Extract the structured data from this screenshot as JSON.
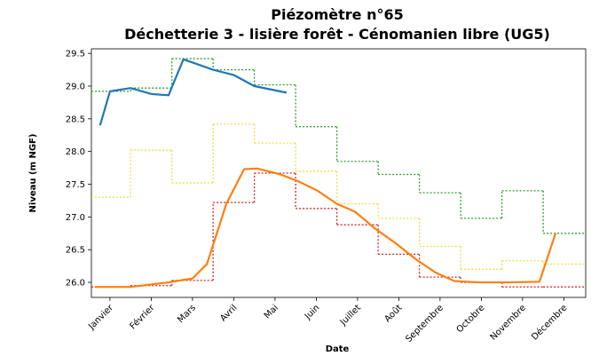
{
  "chart_data": {
    "type": "line",
    "title": "Piézomètre n°65",
    "subtitle": "Déchetterie 3 - lisière forêt - Cénomanien libre (UG5)",
    "xlabel": "Date",
    "ylabel": "Niveau (m NGF)",
    "xlim": [
      0.55,
      12.53
    ],
    "ylim": [
      25.77,
      29.57
    ],
    "xticks": [
      {
        "value": 1,
        "label": "Janvier"
      },
      {
        "value": 2,
        "label": "Février"
      },
      {
        "value": 3,
        "label": "Mars"
      },
      {
        "value": 4,
        "label": "Avril"
      },
      {
        "value": 5,
        "label": "Mai"
      },
      {
        "value": 6,
        "label": "Juin"
      },
      {
        "value": 7,
        "label": "Juillet"
      },
      {
        "value": 8,
        "label": "Août"
      },
      {
        "value": 9,
        "label": "Septembre"
      },
      {
        "value": 10,
        "label": "Octobre"
      },
      {
        "value": 11,
        "label": "Novembre"
      },
      {
        "value": 12,
        "label": "Décembre"
      }
    ],
    "yticks": [
      {
        "value": 26,
        "label": "26.0"
      },
      26.5,
      {
        "value": 27,
        "label": "27.0"
      },
      27.5,
      {
        "value": 28,
        "label": "28.0"
      },
      28.5,
      {
        "value": 29,
        "label": "29.0"
      },
      29.5
    ],
    "grid": false,
    "series": [
      {
        "color": "#2ca02c",
        "style": "step",
        "dash": true,
        "x": [
          1,
          2,
          3,
          4,
          5,
          6,
          7,
          8,
          9,
          10,
          11,
          12
        ],
        "values": [
          28.92,
          28.97,
          29.42,
          29.25,
          29.02,
          28.38,
          27.85,
          27.65,
          27.37,
          26.98,
          27.4,
          26.75
        ]
      },
      {
        "color": "#e8e04a",
        "style": "step",
        "dash": true,
        "x": [
          1,
          2,
          3,
          4,
          5,
          6,
          7,
          8,
          9,
          10,
          11,
          12
        ],
        "values": [
          27.3,
          28.02,
          27.52,
          28.42,
          28.13,
          27.7,
          27.2,
          26.98,
          26.55,
          26.2,
          26.33,
          26.28
        ]
      },
      {
        "color": "#d62728",
        "style": "step",
        "dash": true,
        "x": [
          1,
          2,
          3,
          4,
          5,
          6,
          7,
          8,
          9,
          10,
          11,
          12
        ],
        "values": [
          25.93,
          25.95,
          26.03,
          27.22,
          27.67,
          27.13,
          26.88,
          26.43,
          26.08,
          26.0,
          25.93,
          25.93
        ]
      },
      {
        "color": "#1f77b4",
        "style": "line",
        "x": [
          0.76,
          1.0,
          1.5,
          2.0,
          2.42,
          2.78,
          3.5,
          4.0,
          4.5,
          5.28
        ],
        "values": [
          28.4,
          28.92,
          28.97,
          28.88,
          28.86,
          29.41,
          29.25,
          29.17,
          29.0,
          28.9
        ]
      },
      {
        "color": "#ff7f0e",
        "style": "line",
        "x": [
          0.63,
          1.5,
          2.42,
          3.0,
          3.35,
          3.82,
          4.25,
          4.57,
          5.13,
          5.55,
          6.03,
          6.5,
          6.94,
          7.43,
          7.92,
          8.42,
          8.89,
          9.35,
          9.94,
          10.7,
          11.41,
          11.8
        ],
        "values": [
          25.93,
          25.93,
          26.0,
          26.06,
          26.28,
          27.2,
          27.73,
          27.74,
          27.65,
          27.55,
          27.4,
          27.2,
          27.08,
          26.82,
          26.6,
          26.35,
          26.15,
          26.02,
          26.0,
          26.0,
          26.01,
          26.75
        ]
      }
    ]
  }
}
